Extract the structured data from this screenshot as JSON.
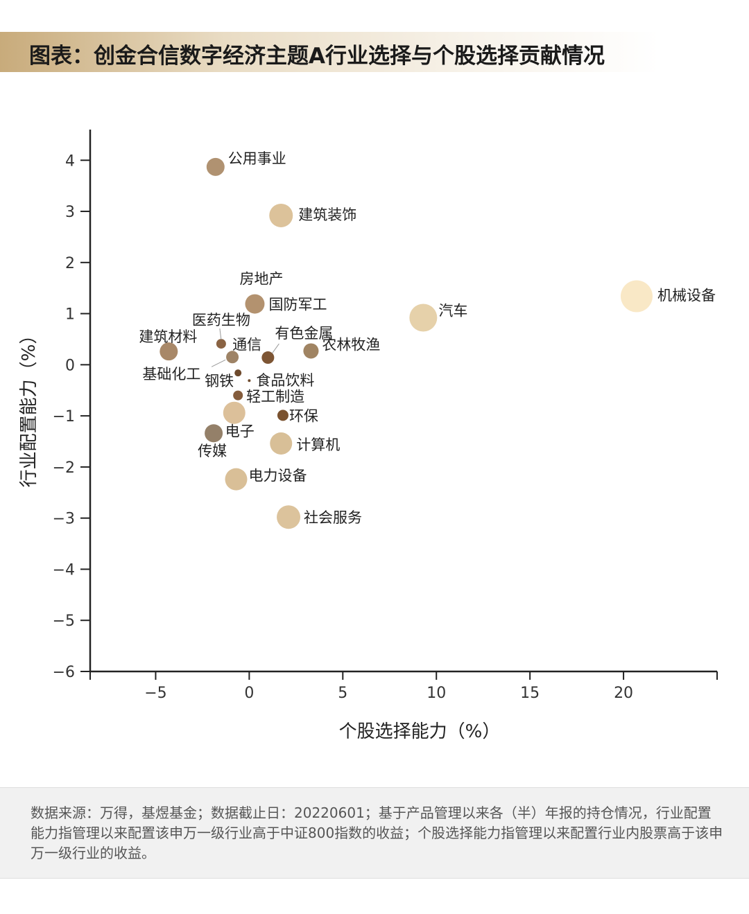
{
  "header": {
    "title": "图表：创金合信数字经济主题A行业选择与个股选择贡献情况"
  },
  "chart_data": {
    "type": "scatter",
    "title": "",
    "xlabel": "个股选择能力（%）",
    "ylabel": "行业配置能力（%）",
    "xlim": [
      -8.5,
      25
    ],
    "ylim": [
      -6,
      4.6
    ],
    "xticks": [
      -5,
      0,
      5,
      10,
      15,
      20
    ],
    "yticks": [
      4,
      3,
      2,
      1,
      0,
      -1,
      -2,
      -3,
      -4,
      -5,
      -6
    ],
    "xtick_labels": [
      "−5",
      "0",
      "5",
      "10",
      "15",
      "20"
    ],
    "ytick_labels": [
      "4",
      "3",
      "2",
      "1",
      "0",
      "−1",
      "−2",
      "−3",
      "−4",
      "−5",
      "−6"
    ],
    "grid": false,
    "points": [
      {
        "label": "公用事业",
        "x": -1.8,
        "y": 3.87,
        "size": 13,
        "color": "#b09271"
      },
      {
        "label": "建筑装饰",
        "x": 1.7,
        "y": 2.92,
        "size": 17,
        "color": "#dcc29a"
      },
      {
        "label": "房地产",
        "x": 0.3,
        "y": 1.19,
        "size": 14,
        "color": "#b3926f"
      },
      {
        "label": "国防军工",
        "x": 0.3,
        "y": 1.19,
        "size": 0,
        "color": "#b3926f"
      },
      {
        "label": "汽车",
        "x": 9.3,
        "y": 0.92,
        "size": 20,
        "color": "#e6d1aa"
      },
      {
        "label": "机械设备",
        "x": 20.7,
        "y": 1.34,
        "size": 23,
        "color": "#f9e8c6"
      },
      {
        "label": "医药生物",
        "x": -1.5,
        "y": 0.41,
        "size": 7,
        "color": "#8a6343"
      },
      {
        "label": "通信",
        "x": -0.9,
        "y": 0.15,
        "size": 9,
        "color": "#9e8366"
      },
      {
        "label": "有色金属",
        "x": 1.0,
        "y": 0.14,
        "size": 9,
        "color": "#7d5534"
      },
      {
        "label": "农林牧渔",
        "x": 3.3,
        "y": 0.27,
        "size": 11,
        "color": "#a08463"
      },
      {
        "label": "建筑材料",
        "x": -4.3,
        "y": 0.26,
        "size": 13,
        "color": "#a88868"
      },
      {
        "label": "基础化工",
        "x": -4.3,
        "y": 0.26,
        "size": 0,
        "color": "#a88868"
      },
      {
        "label": "钢铁",
        "x": -0.6,
        "y": -0.16,
        "size": 5,
        "color": "#6e4a2c"
      },
      {
        "label": "食品饮料",
        "x": 0,
        "y": -0.31,
        "size": 2,
        "color": "#6e4a2c"
      },
      {
        "label": "轻工制造",
        "x": -0.6,
        "y": -0.6,
        "size": 7,
        "color": "#845c3c"
      },
      {
        "label": "环保",
        "x": 1.8,
        "y": -0.99,
        "size": 8,
        "color": "#7a522f"
      },
      {
        "label": "电子",
        "x": -0.8,
        "y": -0.94,
        "size": 16,
        "color": "#dcc09a"
      },
      {
        "label": "传媒",
        "x": -1.9,
        "y": -1.34,
        "size": 13,
        "color": "#948069"
      },
      {
        "label": "计算机",
        "x": 1.7,
        "y": -1.54,
        "size": 16,
        "color": "#d8bf97"
      },
      {
        "label": "电力设备",
        "x": -0.7,
        "y": -2.24,
        "size": 16,
        "color": "#d9bf97"
      },
      {
        "label": "社会服务",
        "x": 2.1,
        "y": -2.98,
        "size": 17,
        "color": "#dcc39c"
      }
    ]
  },
  "footer": {
    "note": "数据来源：万得，基煜基金；数据截止日：20220601；基于产品管理以来各（半）年报的持仓情况，行业配置能力指管理以来配置该申万一级行业高于中证800指数的收益；个股选择能力指管理以来配置行业内股票高于该申万一级行业的收益。"
  }
}
